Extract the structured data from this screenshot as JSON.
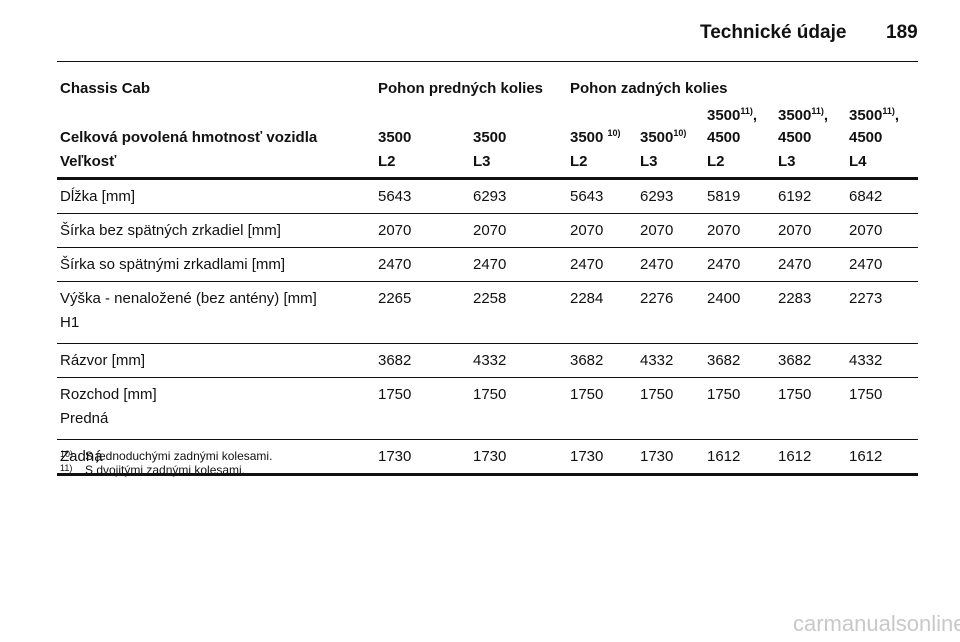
{
  "header": {
    "title": "Technické údaje",
    "page": "189"
  },
  "table": {
    "group_row": {
      "label": "Chassis Cab",
      "front": "Pohon predných kolies",
      "rear": "Pohon zadných kolies"
    },
    "weight_row": {
      "label": "Celková povolená hmotnosť vozidla",
      "cells": [
        {
          "main": "3500"
        },
        {
          "main": "3500"
        },
        {
          "main": "3500 ",
          "sup": "10)"
        },
        {
          "main": "3500",
          "sup": "10)"
        },
        {
          "main": "3500",
          "sup": "11)",
          "after": ",",
          "line2": "4500"
        },
        {
          "main": "3500",
          "sup": "11)",
          "after": ",",
          "line2": "4500"
        },
        {
          "main": "3500",
          "sup": "11)",
          "after": ",",
          "line2": "4500"
        }
      ]
    },
    "size_row": {
      "label": "Veľkosť",
      "cells": [
        "L2",
        "L3",
        "L2",
        "L3",
        "L2",
        "L3",
        "L4"
      ]
    },
    "rows": [
      {
        "label": [
          "Dĺžka [mm]"
        ],
        "values": [
          "5643",
          "6293",
          "5643",
          "6293",
          "5819",
          "6192",
          "6842"
        ]
      },
      {
        "label": [
          "Šírka bez spätných zrkadiel [mm]"
        ],
        "values": [
          "2070",
          "2070",
          "2070",
          "2070",
          "2070",
          "2070",
          "2070"
        ]
      },
      {
        "label": [
          "Šírka so spätnými zrkadlami [mm]"
        ],
        "values": [
          "2470",
          "2470",
          "2470",
          "2470",
          "2470",
          "2470",
          "2470"
        ]
      },
      {
        "label": [
          "Výška - nenaložené (bez antény) [mm]",
          "H1"
        ],
        "values": [
          "2265",
          "2258",
          "2284",
          "2276",
          "2400",
          "2283",
          "2273"
        ]
      },
      {
        "label": [
          "Rázvor [mm]"
        ],
        "values": [
          "3682",
          "4332",
          "3682",
          "4332",
          "3682",
          "3682",
          "4332"
        ]
      },
      {
        "label": [
          "Rozchod [mm]",
          "Predná"
        ],
        "values": [
          "1750",
          "1750",
          "1750",
          "1750",
          "1750",
          "1750",
          "1750"
        ]
      },
      {
        "label": [
          "Zadná"
        ],
        "values": [
          "1730",
          "1730",
          "1730",
          "1730",
          "1612",
          "1612",
          "1612"
        ]
      }
    ]
  },
  "footnotes": [
    {
      "mark": "10)",
      "text": "S jednoduchými zadnými kolesami."
    },
    {
      "mark": "11)",
      "text": "S dvojitými zadnými kolesami."
    }
  ],
  "watermark": "carmanualsonline.info"
}
